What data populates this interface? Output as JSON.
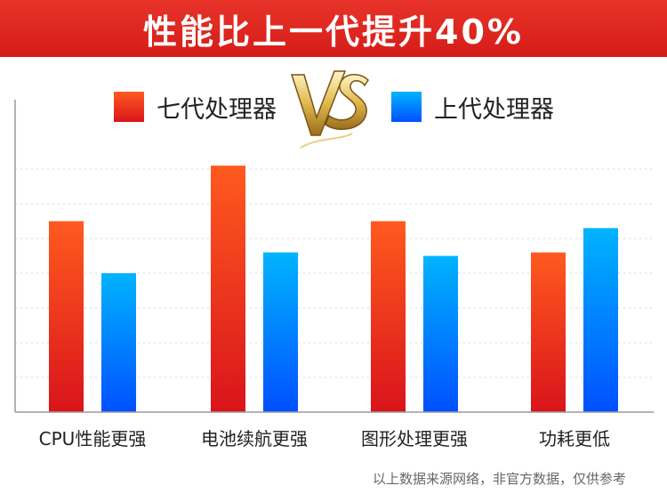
{
  "header": {
    "title": "性能比上一代提升40%"
  },
  "footnote": "以上数据来源网络，非官方数据，仅供参考",
  "colors": {
    "red_top": "#ff5a1f",
    "red_bottom": "#d9141b",
    "blue_top": "#00b4ff",
    "blue_bottom": "#0050ff",
    "title_bg": "#e02a22",
    "vs_gold": "#d9b24a"
  },
  "vs_icon": "vs-emblem-icon",
  "chart_data": {
    "type": "bar",
    "categories": [
      "CPU性能更强",
      "电池续航更强",
      "图形处理更强",
      "功耗更低"
    ],
    "series": [
      {
        "name": "七代处理器",
        "values": [
          5.5,
          7.1,
          5.5,
          4.6
        ]
      },
      {
        "name": "上代处理器",
        "values": [
          4.0,
          4.6,
          4.5,
          5.3
        ]
      }
    ],
    "ylim": [
      0,
      9
    ],
    "grid": true,
    "legend_position": "top"
  }
}
